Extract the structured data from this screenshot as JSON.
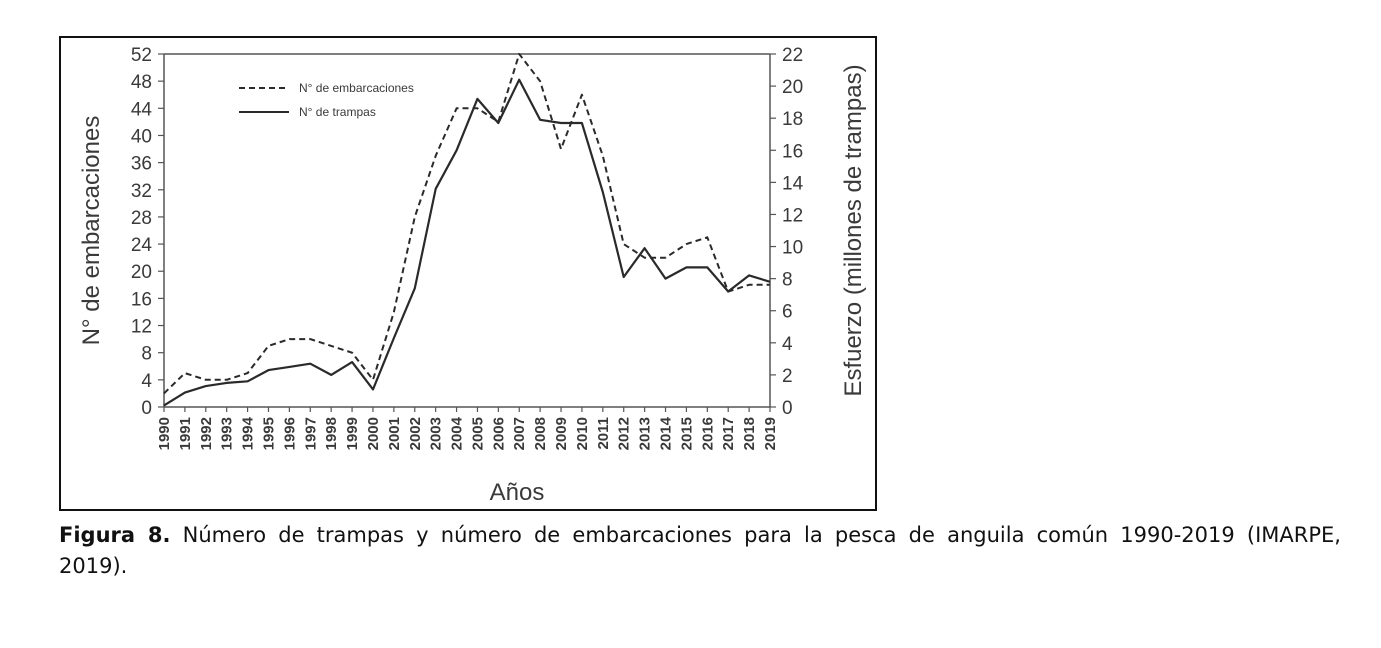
{
  "chart_data": {
    "type": "line",
    "x": [
      1990,
      1991,
      1992,
      1993,
      1994,
      1995,
      1996,
      1997,
      1998,
      1999,
      2000,
      2001,
      2002,
      2003,
      2004,
      2005,
      2006,
      2007,
      2008,
      2009,
      2010,
      2011,
      2012,
      2013,
      2014,
      2015,
      2016,
      2017,
      2018,
      2019
    ],
    "x_tick_labels": [
      "1990",
      "1991",
      "1992",
      "1993",
      "1994",
      "1995",
      "1996",
      "1997",
      "1998",
      "1999",
      "2000",
      "2001",
      "2002",
      "2003",
      "2004",
      "2005",
      "2006",
      "2007",
      "2008",
      "2009",
      "2010",
      "2011",
      "2012",
      "2013",
      "2014",
      "2015",
      "2016",
      "2017",
      "2018",
      "2019"
    ],
    "xlabel": "Años",
    "ylabel": "N° de embarcaciones",
    "y2label": "Esfuerzo (millones de trampas)",
    "ylim": [
      0,
      52
    ],
    "y2lim": [
      0,
      22
    ],
    "y_ticks": [
      0,
      4,
      8,
      12,
      16,
      20,
      24,
      28,
      32,
      36,
      40,
      44,
      48,
      52
    ],
    "y2_ticks": [
      0,
      2,
      4,
      6,
      8,
      10,
      12,
      14,
      16,
      18,
      20,
      22
    ],
    "legend_position": "top-left",
    "grid": false,
    "series": [
      {
        "name": "N° de embarcaciones",
        "axis": "left",
        "style": "dashed",
        "values": [
          2,
          5,
          4,
          4,
          5,
          9,
          10,
          10,
          9,
          8,
          4,
          14,
          28,
          37,
          44,
          44,
          42,
          52,
          48,
          38,
          46,
          37,
          24,
          22,
          22,
          24,
          25,
          17,
          18,
          18
        ]
      },
      {
        "name": "N° de trampas",
        "axis": "right",
        "style": "solid",
        "values": [
          0.1,
          0.9,
          1.3,
          1.5,
          1.6,
          2.3,
          2.5,
          2.7,
          2.0,
          2.8,
          1.1,
          4.3,
          7.4,
          13.6,
          16.0,
          19.2,
          17.7,
          20.4,
          17.9,
          17.7,
          17.7,
          13.4,
          8.1,
          9.9,
          8.0,
          8.7,
          8.7,
          7.2,
          8.2,
          7.8
        ]
      }
    ]
  },
  "caption": {
    "label": "Figura 8.",
    "text": " Número de trampas y número de embarcaciones para la pesca de anguila común 1990-2019 (IMARPE, 2019)."
  },
  "colors": {
    "line": "#2a2a2a",
    "axis": "#555555",
    "frame": "#111111"
  }
}
